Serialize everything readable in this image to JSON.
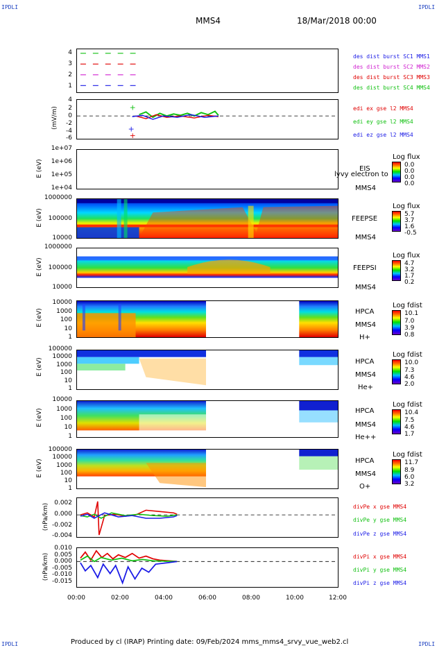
{
  "corners": {
    "tl": "IPDLI",
    "tr": "IPDLI",
    "bl": "IPDLI",
    "br": "IPDLI"
  },
  "header": {
    "spacecraft": "MMS4",
    "date": "18/Mar/2018 00:00"
  },
  "footer": {
    "text": "Produced by cl (IRAP)    Printing date: 09/Feb/2024   mms_mms4_srvy_vue_web2.cl"
  },
  "chart_data": {
    "type": "stacked-panels",
    "xaxis": {
      "ticks": [
        "00:00",
        "02:00",
        "04:00",
        "06:00",
        "08:00",
        "10:00",
        "12:00"
      ]
    },
    "panels": [
      {
        "id": "burst",
        "yticks": [
          "4",
          "3",
          "2",
          "1"
        ],
        "legend": [
          {
            "text": "des dist burst SC1 MMS1",
            "color": "#1a1ae6"
          },
          {
            "text": "des dist burst SC2 MMS2",
            "color": "#d020d0"
          },
          {
            "text": "des dist burst SC3 MMS3",
            "color": "#e00000"
          },
          {
            "text": "des dist burst SC4 MMS4",
            "color": "#10c010"
          }
        ]
      },
      {
        "id": "edi",
        "ylabel": "(mV/m)",
        "yticks": [
          "4",
          "2",
          "0",
          "-2",
          "-4",
          "-6"
        ],
        "legend": [
          {
            "text": "edi ex gse l2 MMS4",
            "color": "#e00000"
          },
          {
            "text": "edi ey gse l2 MMS4",
            "color": "#10c010"
          },
          {
            "text": "edi ez gse l2 MMS4",
            "color": "#1a1ae6"
          }
        ]
      },
      {
        "id": "eis",
        "ylabel": "E (eV)",
        "yticks": [
          "1e+07",
          "1e+06",
          "1e+05",
          "1e+04"
        ],
        "side": [
          "EIS",
          "MMS4"
        ],
        "overlap": "lyvy electron to",
        "cb": {
          "title": "Log flux",
          "vals": [
            "0.0",
            "0.0",
            "0.0",
            "0.0"
          ]
        }
      },
      {
        "id": "feepse",
        "ylabel": "E (eV)",
        "yticks": [
          "1000000",
          "100000",
          "10000"
        ],
        "side": [
          "FEEPSE",
          "MMS4"
        ],
        "cb": {
          "title": "Log flux",
          "vals": [
            "5.7",
            "3.7",
            "1.6",
            "-0.5"
          ]
        }
      },
      {
        "id": "feepsi",
        "ylabel": "E (eV)",
        "yticks": [
          "1000000",
          "100000",
          "10000"
        ],
        "side": [
          "FEEPSI",
          "MMS4"
        ],
        "cb": {
          "title": "Log flux",
          "vals": [
            "4.7",
            "3.2",
            "1.7",
            "0.2"
          ]
        }
      },
      {
        "id": "hpca_h",
        "ylabel": "E (eV)",
        "yticks": [
          "10000",
          "1000",
          "100",
          "10",
          "1"
        ],
        "side": [
          "HPCA",
          "MMS4",
          "H+"
        ],
        "cb": {
          "title": "Log fdist",
          "vals": [
            "10.1",
            "7.0",
            "3.9",
            "0.8"
          ]
        }
      },
      {
        "id": "hpca_he",
        "ylabel": "E (eV)",
        "yticks": [
          "100000",
          "10000",
          "1000",
          "100",
          "10",
          "1"
        ],
        "side": [
          "HPCA",
          "MMS4",
          "He+"
        ],
        "cb": {
          "title": "Log fdist",
          "vals": [
            "10.0",
            "7.3",
            "4.6",
            "2.0"
          ]
        }
      },
      {
        "id": "hpca_hepp",
        "ylabel": "E (eV)",
        "yticks": [
          "10000",
          "1000",
          "100",
          "10",
          "1"
        ],
        "side": [
          "HPCA",
          "MMS4",
          "He++"
        ],
        "cb": {
          "title": "Log fdist",
          "vals": [
            "10.4",
            "7.5",
            "4.6",
            "1.7"
          ]
        }
      },
      {
        "id": "hpca_o",
        "ylabel": "E (eV)",
        "yticks": [
          "100000",
          "10000",
          "1000",
          "100",
          "10",
          "1"
        ],
        "side": [
          "HPCA",
          "MMS4",
          "O+"
        ],
        "cb": {
          "title": "Log fdist",
          "vals": [
            "11.7",
            "8.9",
            "6.0",
            "3.2"
          ]
        }
      },
      {
        "id": "divpe",
        "ylabel": "(nPa/km)",
        "yticks": [
          "0.002",
          "0.000",
          "-0.002",
          "-0.004"
        ],
        "legend": [
          {
            "text": "divPe x gse MMS4",
            "color": "#e00000"
          },
          {
            "text": "divPe y gse MMS4",
            "color": "#10c010"
          },
          {
            "text": "divPe z gse MMS4",
            "color": "#1a1ae6"
          }
        ]
      },
      {
        "id": "divpi",
        "ylabel": "(nPa/km)",
        "yticks": [
          "0.010",
          "0.005",
          "0.000",
          "-0.005",
          "-0.010",
          "-0.015"
        ],
        "legend": [
          {
            "text": "divPi x gse MMS4",
            "color": "#e00000"
          },
          {
            "text": "divPi y gse MMS4",
            "color": "#10c010"
          },
          {
            "text": "divPi z gse MMS4",
            "color": "#1a1ae6"
          }
        ]
      }
    ]
  }
}
